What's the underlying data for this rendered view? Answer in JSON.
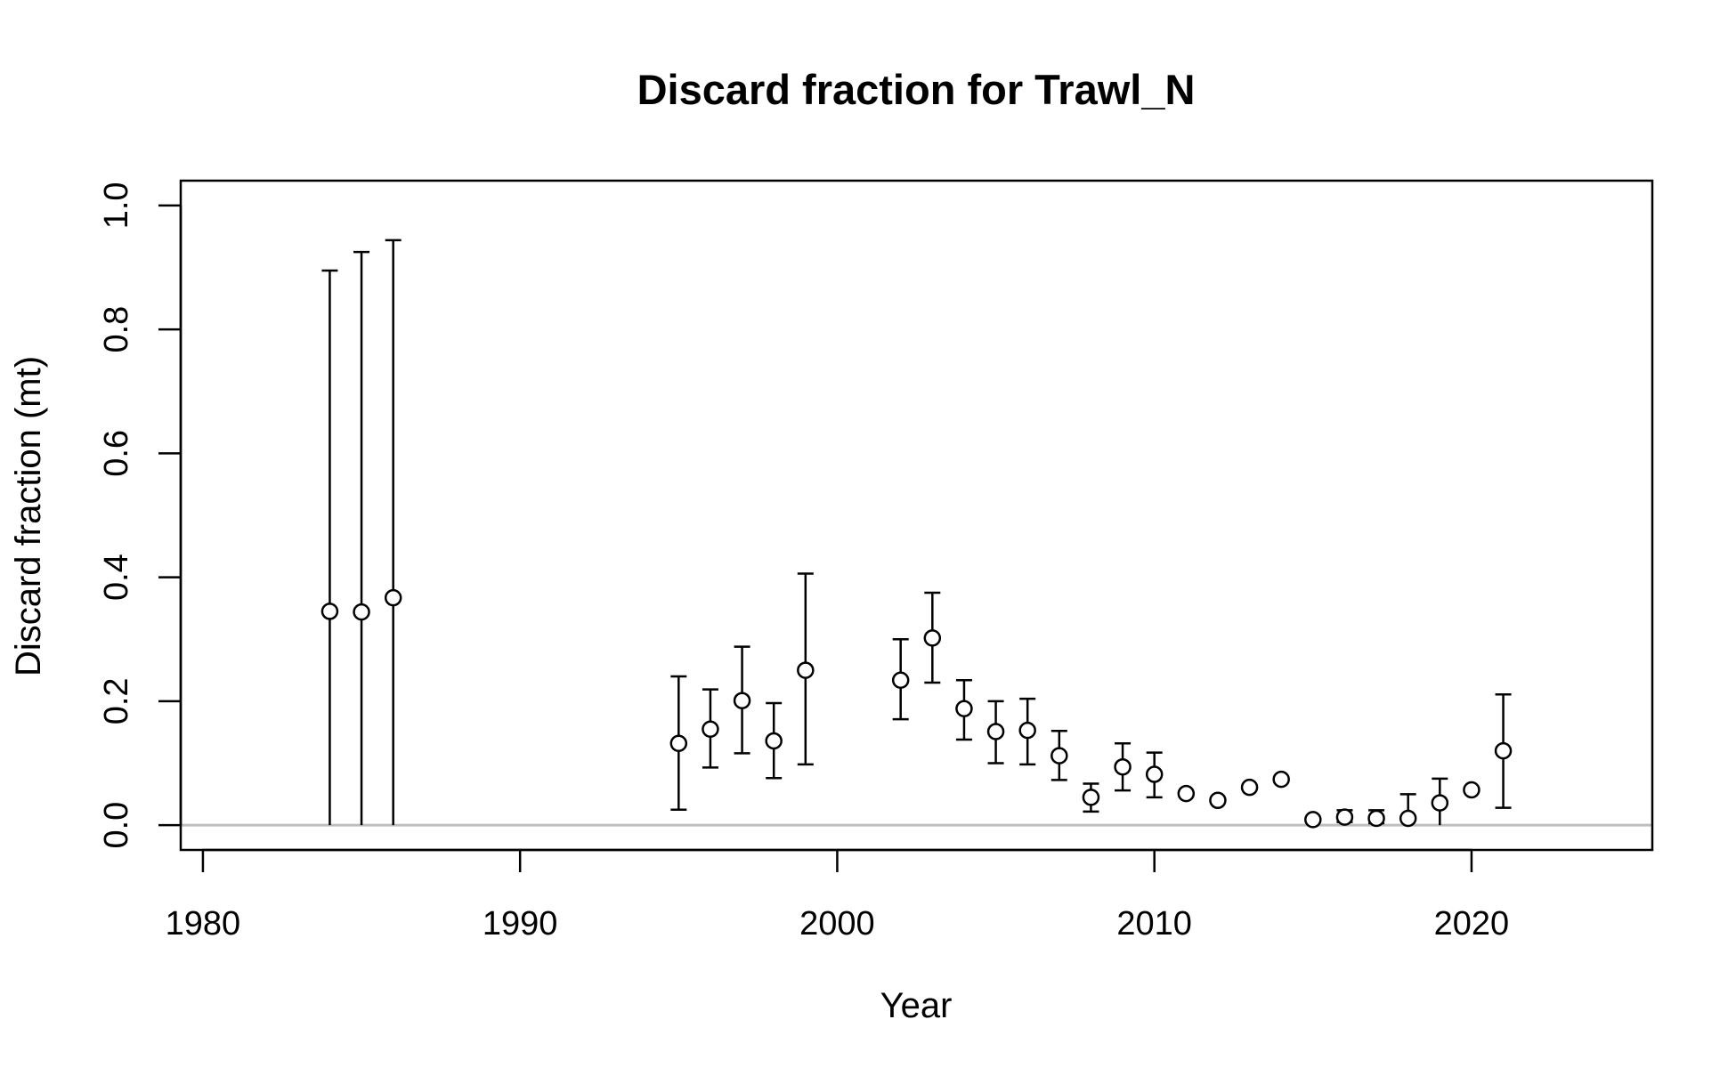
{
  "chart_data": {
    "type": "scatter",
    "title": "Discard fraction for Trawl_N",
    "xlabel": "Year",
    "ylabel": "Discard fraction (mt)",
    "xlim": [
      1979.3,
      2025.7
    ],
    "ylim": [
      -0.04,
      1.04
    ],
    "xticks": [
      1980,
      1990,
      2000,
      2010,
      2020
    ],
    "yticks": [
      0.0,
      0.2,
      0.4,
      0.6,
      0.8,
      1.0
    ],
    "xtick_labels": [
      "1980",
      "1990",
      "2000",
      "2010",
      "2020"
    ],
    "ytick_labels": [
      "0.0",
      "0.2",
      "0.4",
      "0.6",
      "0.8",
      "1.0"
    ],
    "reference_line": {
      "y": 0,
      "color": "#bebebe"
    },
    "grid": false,
    "series": [
      {
        "points": [
          {
            "x": 1984,
            "y": 0.345,
            "lower": 0.0,
            "upper": 0.895
          },
          {
            "x": 1985,
            "y": 0.344,
            "lower": 0.0,
            "upper": 0.925
          },
          {
            "x": 1986,
            "y": 0.367,
            "lower": 0.0,
            "upper": 0.944
          },
          {
            "x": 1995,
            "y": 0.132,
            "lower": 0.025,
            "upper": 0.24
          },
          {
            "x": 1996,
            "y": 0.155,
            "lower": 0.093,
            "upper": 0.219
          },
          {
            "x": 1997,
            "y": 0.201,
            "lower": 0.116,
            "upper": 0.288
          },
          {
            "x": 1998,
            "y": 0.136,
            "lower": 0.076,
            "upper": 0.197
          },
          {
            "x": 1999,
            "y": 0.25,
            "lower": 0.098,
            "upper": 0.406
          },
          {
            "x": 2002,
            "y": 0.234,
            "lower": 0.171,
            "upper": 0.3
          },
          {
            "x": 2003,
            "y": 0.302,
            "lower": 0.23,
            "upper": 0.375
          },
          {
            "x": 2004,
            "y": 0.188,
            "lower": 0.138,
            "upper": 0.234
          },
          {
            "x": 2005,
            "y": 0.151,
            "lower": 0.1,
            "upper": 0.2
          },
          {
            "x": 2006,
            "y": 0.153,
            "lower": 0.098,
            "upper": 0.204
          },
          {
            "x": 2007,
            "y": 0.112,
            "lower": 0.073,
            "upper": 0.152
          },
          {
            "x": 2008,
            "y": 0.045,
            "lower": 0.022,
            "upper": 0.067
          },
          {
            "x": 2009,
            "y": 0.094,
            "lower": 0.056,
            "upper": 0.132
          },
          {
            "x": 2010,
            "y": 0.082,
            "lower": 0.045,
            "upper": 0.117
          },
          {
            "x": 2011,
            "y": 0.051,
            "lower": 0.051,
            "upper": 0.051
          },
          {
            "x": 2012,
            "y": 0.04,
            "lower": 0.04,
            "upper": 0.04
          },
          {
            "x": 2013,
            "y": 0.061,
            "lower": 0.061,
            "upper": 0.061
          },
          {
            "x": 2014,
            "y": 0.074,
            "lower": 0.074,
            "upper": 0.074
          },
          {
            "x": 2015,
            "y": 0.009,
            "lower": 0.009,
            "upper": 0.009
          },
          {
            "x": 2016,
            "y": 0.013,
            "lower": 0.005,
            "upper": 0.024
          },
          {
            "x": 2017,
            "y": 0.011,
            "lower": 0.003,
            "upper": 0.024
          },
          {
            "x": 2018,
            "y": 0.011,
            "lower": 0.0,
            "upper": 0.05
          },
          {
            "x": 2019,
            "y": 0.036,
            "lower": 0.0,
            "upper": 0.075
          },
          {
            "x": 2020,
            "y": 0.057,
            "lower": 0.057,
            "upper": 0.057
          },
          {
            "x": 2021,
            "y": 0.12,
            "lower": 0.028,
            "upper": 0.211
          }
        ]
      }
    ]
  }
}
